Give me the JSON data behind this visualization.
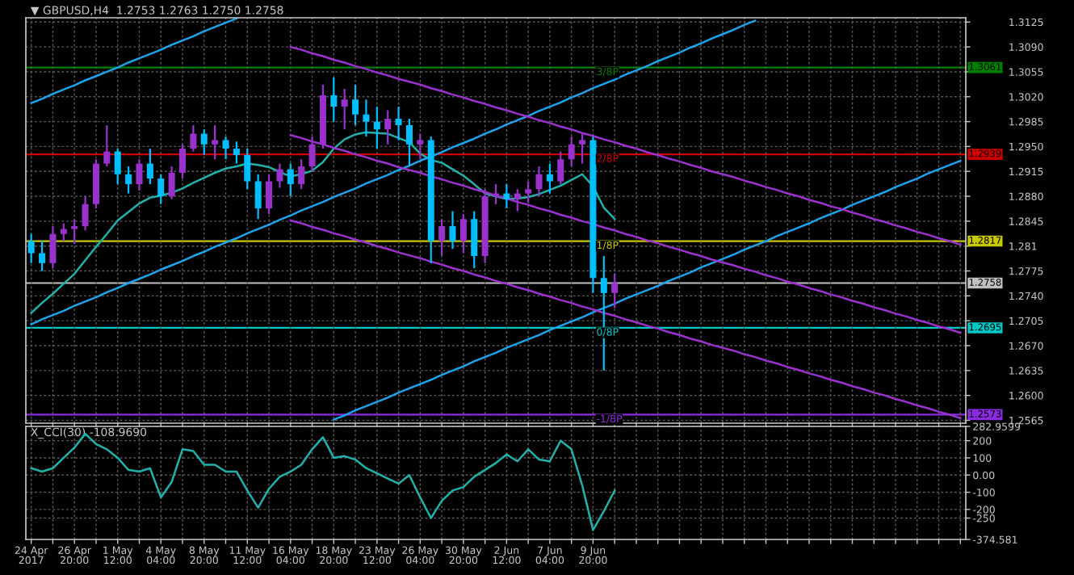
{
  "chart_data": [
    {
      "type": "candlestick",
      "title": "▼ GBPUSD,H4  1.2753 1.2763 1.2750 1.2758",
      "categories": [
        "24 Apr 2017",
        null,
        null,
        null,
        "26 Apr 20:00",
        null,
        null,
        null,
        "1 May 12:00",
        null,
        null,
        null,
        "4 May 04:00",
        null,
        null,
        null,
        "8 May 20:00",
        null,
        null,
        null,
        "11 May 12:00",
        null,
        null,
        null,
        "16 May 04:00",
        null,
        null,
        null,
        "18 May 20:00",
        null,
        null,
        null,
        "23 May 12:00",
        null,
        null,
        null,
        "26 May 04:00",
        null,
        null,
        null,
        "30 May 20:00",
        null,
        null,
        null,
        "2 Jun 12:00",
        null,
        null,
        null,
        "7 Jun 04:00",
        null,
        null,
        null,
        "9 Jun 20:00",
        null,
        null,
        null,
        null,
        null,
        null,
        null,
        null,
        null,
        null,
        null,
        null,
        null,
        null,
        null,
        null,
        null,
        null,
        null,
        null,
        null,
        null,
        null,
        null,
        null,
        null,
        null,
        null,
        null,
        null,
        null,
        null,
        null,
        null
      ],
      "ohlc": [
        [
          1.2817,
          1.2827,
          1.2786,
          1.28
        ],
        [
          1.28,
          1.2817,
          1.2775,
          1.2786
        ],
        [
          1.2786,
          1.2838,
          1.2779,
          1.2827
        ],
        [
          1.2827,
          1.2842,
          1.2817,
          1.2834
        ],
        [
          1.2834,
          1.2848,
          1.2813,
          1.2838
        ],
        [
          1.2838,
          1.288,
          1.2832,
          1.2869
        ],
        [
          1.2869,
          1.2932,
          1.2863,
          1.2926
        ],
        [
          1.2926,
          1.298,
          1.2922,
          1.2943
        ],
        [
          1.2943,
          1.2947,
          1.2897,
          1.2911
        ],
        [
          1.2911,
          1.2922,
          1.2884,
          1.2897
        ],
        [
          1.2897,
          1.2932,
          1.2888,
          1.2926
        ],
        [
          1.2926,
          1.2947,
          1.2897,
          1.2905
        ],
        [
          1.2905,
          1.2911,
          1.2869,
          1.288
        ],
        [
          1.288,
          1.2922,
          1.2876,
          1.2913
        ],
        [
          1.2913,
          1.2953,
          1.2905,
          1.2947
        ],
        [
          1.2947,
          1.298,
          1.2943,
          1.2968
        ],
        [
          1.2968,
          1.2974,
          1.2938,
          1.2953
        ],
        [
          1.2953,
          1.298,
          1.2932,
          1.2959
        ],
        [
          1.2959,
          1.2964,
          1.2932,
          1.2947
        ],
        [
          1.2947,
          1.2957,
          1.2926,
          1.2938
        ],
        [
          1.2938,
          1.2947,
          1.289,
          1.2901
        ],
        [
          1.2901,
          1.2911,
          1.2848,
          1.2863
        ],
        [
          1.2863,
          1.2911,
          1.2855,
          1.2901
        ],
        [
          1.2901,
          1.2926,
          1.2892,
          1.2918
        ],
        [
          1.2918,
          1.2926,
          1.288,
          1.2897
        ],
        [
          1.2897,
          1.2932,
          1.289,
          1.2922
        ],
        [
          1.2922,
          1.2964,
          1.2915,
          1.2953
        ],
        [
          1.2953,
          1.3037,
          1.2947,
          1.3022
        ],
        [
          1.3022,
          1.3047,
          1.2985,
          1.3006
        ],
        [
          1.3006,
          1.3031,
          1.2974,
          1.3016
        ],
        [
          1.3016,
          1.3037,
          1.298,
          1.2995
        ],
        [
          1.2995,
          1.3016,
          1.2964,
          1.2985
        ],
        [
          1.2985,
          1.3006,
          1.2947,
          1.2974
        ],
        [
          1.2974,
          1.3001,
          1.2953,
          1.2989
        ],
        [
          1.2989,
          1.3006,
          1.2959,
          1.298
        ],
        [
          1.298,
          1.2989,
          1.2922,
          1.2953
        ],
        [
          1.2953,
          1.2968,
          1.2932,
          1.2959
        ],
        [
          1.2959,
          1.2964,
          1.2786,
          1.2817
        ],
        [
          1.2817,
          1.2848,
          1.2796,
          1.2838
        ],
        [
          1.2838,
          1.2859,
          1.2806,
          1.2817
        ],
        [
          1.2817,
          1.2855,
          1.28,
          1.2848
        ],
        [
          1.2848,
          1.2859,
          1.2779,
          1.2796
        ],
        [
          1.2796,
          1.289,
          1.2786,
          1.288
        ],
        [
          1.288,
          1.2897,
          1.2869,
          1.2884
        ],
        [
          1.2884,
          1.2897,
          1.2863,
          1.2876
        ],
        [
          1.2876,
          1.289,
          1.2859,
          1.2884
        ],
        [
          1.2884,
          1.2901,
          1.2871,
          1.289
        ],
        [
          1.289,
          1.2922,
          1.288,
          1.2911
        ],
        [
          1.2911,
          1.2926,
          1.2884,
          1.2901
        ],
        [
          1.2901,
          1.2943,
          1.2897,
          1.2932
        ],
        [
          1.2932,
          1.2964,
          1.2922,
          1.2953
        ],
        [
          1.2953,
          1.2968,
          1.2926,
          1.2959
        ],
        [
          1.2959,
          1.2964,
          1.2744,
          1.2765
        ],
        [
          1.2765,
          1.2796,
          1.2635,
          1.2744
        ],
        [
          1.2744,
          1.2771,
          1.2723,
          1.2758
        ],
        null,
        null,
        null,
        null,
        null,
        null,
        null,
        null,
        null,
        null,
        null,
        null,
        null,
        null,
        null,
        null,
        null,
        null,
        null,
        null,
        null,
        null,
        null,
        null,
        null,
        null,
        null,
        null,
        null,
        null,
        null,
        null
      ],
      "colors": [
        "#00bfff",
        "#00bfff",
        "#9932cc",
        "#9932cc",
        "#9932cc",
        "#9932cc",
        "#9932cc",
        "#9932cc",
        "#00bfff",
        "#00bfff",
        "#9932cc",
        "#00bfff",
        "#00bfff",
        "#9932cc",
        "#9932cc",
        "#9932cc",
        "#00bfff",
        "#9932cc",
        "#00bfff",
        "#00bfff",
        "#00bfff",
        "#00bfff",
        "#9932cc",
        "#9932cc",
        "#00bfff",
        "#9932cc",
        "#9932cc",
        "#9932cc",
        "#00bfff",
        "#9932cc",
        "#00bfff",
        "#00bfff",
        "#00bfff",
        "#9932cc",
        "#00bfff",
        "#00bfff",
        "#9932cc",
        "#00bfff",
        "#9932cc",
        "#00bfff",
        "#9932cc",
        "#00bfff",
        "#9932cc",
        "#9932cc",
        "#00bfff",
        "#9932cc",
        "#9932cc",
        "#9932cc",
        "#00bfff",
        "#9932cc",
        "#9932cc",
        "#9932cc",
        "#00bfff",
        "#00bfff",
        "#9932cc",
        null,
        null,
        null,
        null,
        null,
        null,
        null,
        null,
        null,
        null,
        null,
        null,
        null,
        null,
        null,
        null,
        null,
        null,
        null,
        null,
        null,
        null,
        null,
        null,
        null,
        null,
        null,
        null,
        null,
        null,
        null,
        null
      ],
      "series": [
        {
          "type": "line",
          "color": "#20b2aa",
          "values": [
            1.2716,
            1.273,
            1.2743,
            1.2757,
            1.2771,
            1.279,
            1.2809,
            1.2827,
            1.2846,
            1.2858,
            1.287,
            1.2878,
            1.2881,
            1.2885,
            1.2891,
            1.2899,
            1.2906,
            1.2913,
            1.2919,
            1.2922,
            1.2926,
            1.2924,
            1.2921,
            1.2914,
            1.2908,
            1.2911,
            1.2916,
            1.2928,
            1.2947,
            1.296,
            1.2967,
            1.297,
            1.2969,
            1.2968,
            1.2962,
            1.2956,
            1.294,
            1.2931,
            1.2927,
            1.2918,
            1.2909,
            1.2897,
            1.2884,
            1.288,
            1.2876,
            1.2877,
            1.2879,
            1.2883,
            1.2889,
            1.2895,
            1.2903,
            1.2911,
            1.2894,
            1.2864,
            1.2848,
            null,
            null,
            null,
            null,
            null,
            null,
            null,
            null,
            null,
            null,
            null,
            null,
            null,
            null,
            null,
            null,
            null,
            null,
            null,
            null,
            null,
            null,
            null,
            null,
            null,
            null,
            null,
            null,
            null,
            null,
            null,
            null
          ]
        },
        {
          "type": "line",
          "color": "#1ca3ec",
          "values": [
            1.3011,
            1.3017,
            1.3024,
            1.303,
            1.3036,
            1.3043,
            1.3049,
            1.3055,
            1.3061,
            1.3068,
            1.3074,
            1.308,
            1.3086,
            1.3093,
            1.3099,
            1.3105,
            1.3112,
            1.3118,
            1.3124,
            1.313,
            null,
            null,
            null,
            null,
            null,
            null,
            null,
            null,
            null,
            null,
            null,
            null,
            null,
            null,
            null,
            null,
            null,
            null,
            null,
            null,
            null,
            null,
            null,
            null,
            null,
            null,
            null,
            null,
            null,
            null,
            null,
            null,
            null,
            null,
            null,
            null,
            null,
            null,
            null,
            null,
            null,
            null,
            null,
            null,
            null,
            null,
            null,
            null,
            null,
            null,
            null,
            null,
            null,
            null,
            null,
            null,
            null,
            null,
            null,
            null,
            null,
            null,
            null,
            null,
            null,
            null,
            null
          ]
        },
        {
          "type": "line",
          "color": "#1ca3ec",
          "values": [
            1.27,
            1.2707,
            1.2713,
            1.2719,
            1.2726,
            1.2732,
            1.2738,
            1.2745,
            1.2751,
            1.2758,
            1.2764,
            1.277,
            1.2777,
            1.2783,
            1.2789,
            1.2796,
            1.2802,
            1.2809,
            1.2815,
            1.2821,
            1.2828,
            1.2834,
            1.284,
            1.2847,
            1.2853,
            1.286,
            1.2866,
            1.2872,
            1.2879,
            1.2885,
            1.2891,
            1.2898,
            1.2904,
            1.291,
            1.2917,
            1.2923,
            1.293,
            1.2936,
            1.2942,
            1.2949,
            1.2955,
            1.2961,
            1.2968,
            1.2974,
            1.2981,
            1.2987,
            1.2993,
            1.3,
            1.3006,
            1.3012,
            1.3019,
            1.3025,
            1.3032,
            1.3038,
            1.3044,
            1.3051,
            1.3057,
            1.3063,
            1.307,
            1.3076,
            1.3082,
            1.3089,
            1.3095,
            1.3102,
            1.3108,
            1.3114,
            1.3121,
            1.3127,
            null,
            null,
            null,
            null,
            null,
            null,
            null,
            null,
            null,
            null,
            null,
            null,
            null,
            null,
            null,
            null,
            null,
            null,
            null
          ]
        },
        {
          "type": "line",
          "color": "#1ca3ec",
          "values": [
            null,
            null,
            null,
            null,
            null,
            null,
            null,
            null,
            null,
            null,
            null,
            null,
            null,
            null,
            null,
            null,
            null,
            null,
            null,
            null,
            null,
            null,
            null,
            null,
            null,
            null,
            null,
            null,
            1.2566,
            1.2572,
            1.2579,
            1.2585,
            1.2591,
            1.2597,
            1.2604,
            1.261,
            1.2616,
            1.2622,
            1.2629,
            1.2635,
            1.2641,
            1.2648,
            1.2654,
            1.266,
            1.2667,
            1.2673,
            1.2679,
            1.2685,
            1.2692,
            1.2698,
            1.2704,
            1.271,
            1.2717,
            1.2723,
            1.2729,
            1.2736,
            1.2742,
            1.2748,
            1.2754,
            1.2761,
            1.2767,
            1.2773,
            1.278,
            1.2786,
            1.2792,
            1.2798,
            1.2805,
            1.2811,
            1.2817,
            1.2824,
            1.283,
            1.2836,
            1.2842,
            1.2849,
            1.2855,
            1.2861,
            1.2868,
            1.2874,
            1.288,
            1.2886,
            1.2893,
            1.2899,
            1.2905,
            1.2912,
            1.2918,
            1.2924,
            1.293
          ]
        },
        {
          "type": "line",
          "color": "#9a32cd",
          "values": [
            null,
            null,
            null,
            null,
            null,
            null,
            null,
            null,
            null,
            null,
            null,
            null,
            null,
            null,
            null,
            null,
            null,
            null,
            null,
            null,
            null,
            null,
            null,
            null,
            1.309,
            1.3086,
            1.3081,
            1.3077,
            1.3072,
            1.3068,
            1.3063,
            1.3059,
            1.3054,
            1.305,
            1.3045,
            1.3041,
            1.3037,
            1.3032,
            1.3028,
            1.3023,
            1.3019,
            1.3014,
            1.301,
            1.3005,
            1.3001,
            1.2996,
            1.2992,
            1.2987,
            1.2983,
            1.2978,
            1.2974,
            1.2969,
            1.2965,
            1.296,
            1.2956,
            1.2951,
            1.2947,
            1.2942,
            1.2938,
            1.2933,
            1.2929,
            1.2924,
            1.292,
            1.2915,
            1.2911,
            1.2907,
            1.2902,
            1.2898,
            1.2893,
            1.2889,
            1.2884,
            1.288,
            1.2875,
            1.2871,
            1.2866,
            1.2862,
            1.2857,
            1.2853,
            1.2848,
            1.2844,
            1.2839,
            1.2835,
            1.283,
            1.2826,
            1.2821,
            1.2817,
            1.2812
          ]
        },
        {
          "type": "line",
          "color": "#9a32cd",
          "values": [
            null,
            null,
            null,
            null,
            null,
            null,
            null,
            null,
            null,
            null,
            null,
            null,
            null,
            null,
            null,
            null,
            null,
            null,
            null,
            null,
            null,
            null,
            null,
            null,
            1.2966,
            1.2962,
            1.2957,
            1.2953,
            1.2948,
            1.2944,
            1.2939,
            1.2935,
            1.293,
            1.2926,
            1.2921,
            1.2917,
            1.2913,
            1.2908,
            1.2904,
            1.2899,
            1.2895,
            1.289,
            1.2886,
            1.2881,
            1.2877,
            1.2872,
            1.2868,
            1.2863,
            1.2859,
            1.2854,
            1.285,
            1.2845,
            1.2841,
            1.2836,
            1.2832,
            1.2827,
            1.2823,
            1.2818,
            1.2814,
            1.2809,
            1.2805,
            1.28,
            1.2796,
            1.2791,
            1.2787,
            1.2783,
            1.2778,
            1.2774,
            1.2769,
            1.2765,
            1.276,
            1.2756,
            1.2751,
            1.2747,
            1.2742,
            1.2738,
            1.2733,
            1.2729,
            1.2724,
            1.272,
            1.2715,
            1.2711,
            1.2706,
            1.2702,
            1.2697,
            1.2693,
            1.2688
          ]
        },
        {
          "type": "line",
          "color": "#9a32cd",
          "values": [
            null,
            null,
            null,
            null,
            null,
            null,
            null,
            null,
            null,
            null,
            null,
            null,
            null,
            null,
            null,
            null,
            null,
            null,
            null,
            null,
            null,
            null,
            null,
            null,
            1.2846,
            1.2842,
            1.2837,
            1.2833,
            1.2828,
            1.2824,
            1.2819,
            1.2815,
            1.281,
            1.2806,
            1.2801,
            1.2797,
            1.2793,
            1.2788,
            1.2784,
            1.2779,
            1.2775,
            1.277,
            1.2766,
            1.2761,
            1.2757,
            1.2752,
            1.2748,
            1.2743,
            1.2739,
            1.2734,
            1.273,
            1.2725,
            1.2721,
            1.2716,
            1.2712,
            1.2707,
            1.2703,
            1.2698,
            1.2694,
            1.2689,
            1.2685,
            1.268,
            1.2676,
            1.2671,
            1.2667,
            1.2663,
            1.2658,
            1.2654,
            1.2649,
            1.2645,
            1.264,
            1.2636,
            1.2631,
            1.2627,
            1.2622,
            1.2618,
            1.2613,
            1.2609,
            1.2604,
            1.26,
            1.2595,
            1.2591,
            1.2586,
            1.2582,
            1.2577,
            1.2573,
            1.2568
          ]
        }
      ],
      "ref_lines": [
        {
          "axis": "y",
          "value": 1.3061,
          "label": "1.3061",
          "color": "#008000"
        },
        {
          "axis": "y",
          "value": 1.2939,
          "label": "1.2939",
          "color": "#d00000"
        },
        {
          "axis": "y",
          "value": 1.2817,
          "label": "1.2817",
          "color": "#c8c800"
        },
        {
          "axis": "y",
          "value": 1.2758,
          "label": "1.2758",
          "color": "#c0c0c0"
        },
        {
          "axis": "y",
          "value": 1.2695,
          "label": "1.2695",
          "color": "#00c8c8"
        },
        {
          "axis": "y",
          "value": 1.2573,
          "label": "1.2573",
          "color": "#8a2be2"
        }
      ],
      "annotations": [
        {
          "text": "3/8P",
          "x": "9 Jun 20:00",
          "y": 1.3061
        },
        {
          "text": "2/8P",
          "x": "9 Jun 20:00",
          "y": 1.2939
        },
        {
          "text": "1/8P",
          "x": "9 Jun 20:00",
          "y": 1.2817
        },
        {
          "text": "0/8P",
          "x": "9 Jun 20:00",
          "y": 1.2695
        },
        {
          "text": "-1/8P",
          "x": "9 Jun 20:00",
          "y": 1.2573
        }
      ],
      "ylim": [
        1.2561,
        1.3131
      ],
      "yticks": [
        1.3125,
        {
          "value": 1.309,
          "label": "1.3090"
        },
        1.3055,
        {
          "value": 1.302,
          "label": "1.3020"
        },
        1.2985,
        {
          "value": 1.295,
          "label": "1.2950"
        },
        1.2915,
        {
          "value": 1.288,
          "label": "1.2880"
        },
        1.2845,
        1.281,
        1.2775,
        {
          "value": 1.274,
          "label": "1.2740"
        },
        1.2705,
        {
          "value": 1.267,
          "label": "1.2670"
        },
        1.2635,
        {
          "value": 1.26,
          "label": "1.2600"
        },
        1.2565
      ],
      "grid": true,
      "tick_labels": "y"
    },
    {
      "type": "line",
      "title": "X_CCI(30) -108.9690",
      "categories": [
        "24 Apr 2017",
        null,
        null,
        null,
        "26 Apr 20:00",
        null,
        null,
        null,
        "1 May 12:00",
        null,
        null,
        null,
        "4 May 04:00",
        null,
        null,
        null,
        "8 May 20:00",
        null,
        null,
        null,
        "11 May 12:00",
        null,
        null,
        null,
        "16 May 04:00",
        null,
        null,
        null,
        "18 May 20:00",
        null,
        null,
        null,
        "23 May 12:00",
        null,
        null,
        null,
        "26 May 04:00",
        null,
        null,
        null,
        "30 May 20:00",
        null,
        null,
        null,
        "2 Jun 12:00",
        null,
        null,
        null,
        "7 Jun 04:00",
        null,
        null,
        null,
        "9 Jun 20:00",
        null,
        null,
        null,
        null,
        null,
        null,
        null,
        null,
        null,
        null,
        null,
        null,
        null,
        null,
        null,
        null,
        null,
        null,
        null,
        null,
        null,
        null,
        null,
        null,
        null,
        null,
        null,
        null,
        null,
        null,
        null,
        null,
        null,
        null
      ],
      "series": [
        {
          "color": "#20b2aa",
          "values": [
            40,
            20,
            40,
            100,
            160,
            240,
            180,
            150,
            100,
            30,
            20,
            40,
            -130,
            -40,
            150,
            140,
            60,
            60,
            20,
            20,
            -90,
            -190,
            -80,
            -10,
            20,
            60,
            150,
            220,
            100,
            110,
            90,
            40,
            10,
            -20,
            -50,
            0,
            -130,
            -250,
            -150,
            -90,
            -70,
            -10,
            30,
            70,
            120,
            80,
            150,
            90,
            80,
            200,
            150,
            -60,
            -320,
            -210,
            -90,
            null,
            null,
            null,
            null,
            null,
            null,
            null,
            null,
            null,
            null,
            null,
            null,
            null,
            null,
            null,
            null,
            null,
            null,
            null,
            null,
            null,
            null,
            null,
            null,
            null,
            null,
            null,
            null,
            null,
            null,
            null,
            null
          ]
        }
      ],
      "ylim": [
        -374.581,
        282.9599
      ],
      "yticks": [
        282.9599,
        200,
        100,
        {
          "value": 0,
          "label": "0.00"
        },
        -100,
        -200,
        -250,
        -374.581
      ],
      "grid": true
    }
  ]
}
